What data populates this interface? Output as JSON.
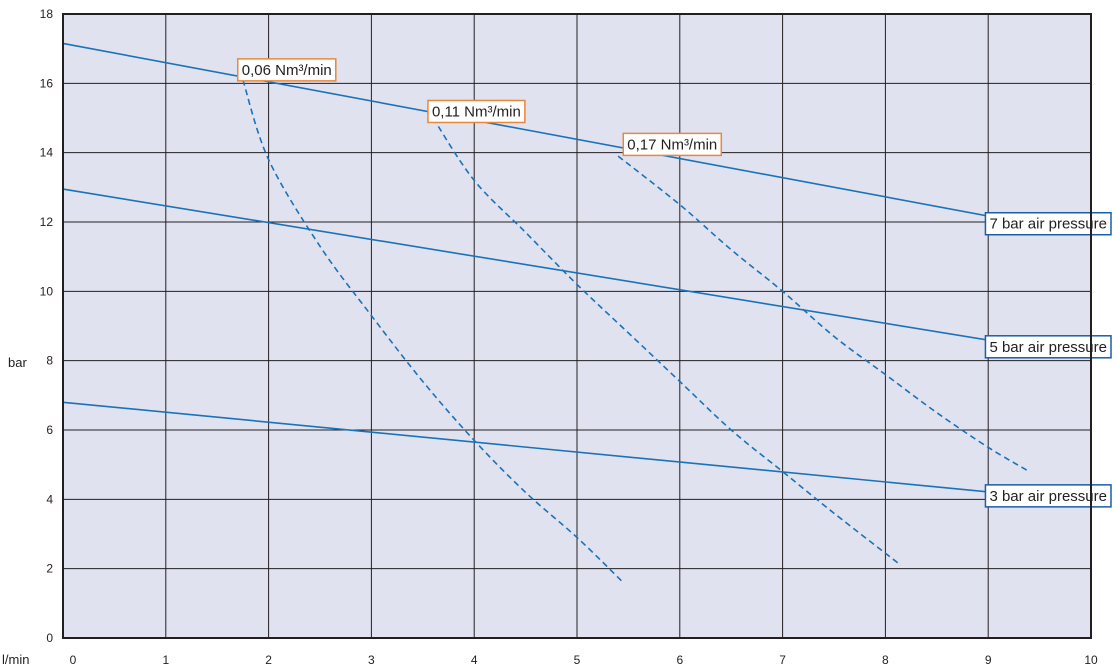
{
  "chart_data": {
    "type": "line",
    "title": "",
    "xlabel": "l/min",
    "ylabel": "bar",
    "xlim": [
      0,
      10
    ],
    "ylim": [
      0,
      18
    ],
    "x_ticks": [
      "0",
      "1",
      "2",
      "3",
      "4",
      "5",
      "6",
      "7",
      "8",
      "9",
      "10"
    ],
    "y_ticks": [
      "0",
      "2",
      "4",
      "6",
      "8",
      "10",
      "12",
      "14",
      "16",
      "18"
    ],
    "grid": true,
    "colors": {
      "plot_bg": "#e0e2f0",
      "grid": "#231f20",
      "line": "#1a73b8",
      "air_label_border": "#1a5ea8",
      "flow_label_border": "#e8883a"
    },
    "series": [
      {
        "name": "7 bar air pressure",
        "style": "solid",
        "x": [
          0,
          9.4
        ],
        "y": [
          17.15,
          11.95
        ]
      },
      {
        "name": "5 bar air pressure",
        "style": "solid",
        "x": [
          0,
          9.4
        ],
        "y": [
          12.95,
          8.4
        ]
      },
      {
        "name": "3 bar air pressure",
        "style": "solid",
        "x": [
          0,
          9.4
        ],
        "y": [
          6.8,
          4.1
        ]
      },
      {
        "name": "0,06 Nm³/min",
        "style": "dashed",
        "x": [
          1.75,
          2.0,
          2.5,
          3.0,
          3.5,
          4.0,
          4.5,
          5.0,
          5.45
        ],
        "y": [
          16.1,
          13.8,
          11.3,
          9.3,
          7.4,
          5.7,
          4.2,
          2.9,
          1.6
        ]
      },
      {
        "name": "0,11 Nm³/min",
        "style": "dashed",
        "x": [
          3.6,
          4.0,
          4.5,
          5.0,
          5.5,
          6.0,
          6.5,
          7.0,
          7.5,
          8.15
        ],
        "y": [
          15.0,
          13.2,
          11.7,
          10.2,
          8.8,
          7.4,
          6.0,
          4.8,
          3.6,
          2.1
        ]
      },
      {
        "name": "0,17 Nm³/min",
        "style": "dashed",
        "x": [
          5.4,
          6.0,
          6.5,
          7.0,
          7.5,
          8.0,
          8.5,
          9.0,
          9.4
        ],
        "y": [
          13.9,
          12.5,
          11.2,
          10.0,
          8.7,
          7.6,
          6.5,
          5.5,
          4.8
        ]
      }
    ],
    "flow_labels": [
      {
        "text": "0,06 Nm³/min",
        "x": 1.7,
        "y": 16.1
      },
      {
        "text": "0,11 Nm³/min",
        "x": 3.55,
        "y": 14.9
      },
      {
        "text": "0,17 Nm³/min",
        "x": 5.45,
        "y": 13.95
      }
    ],
    "line_labels": [
      {
        "text": "7 bar air pressure",
        "y": 11.95
      },
      {
        "text": "5 bar air pressure",
        "y": 8.4
      },
      {
        "text": "3 bar air pressure",
        "y": 4.1
      }
    ]
  }
}
